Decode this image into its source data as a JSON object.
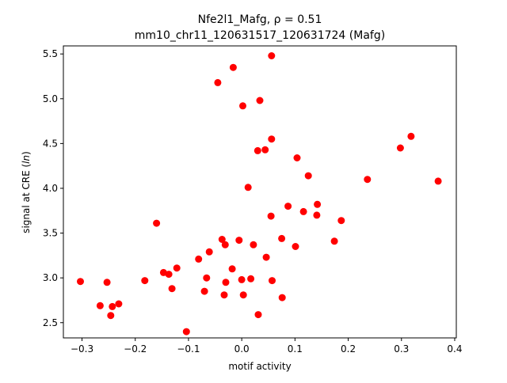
{
  "chart_data": {
    "type": "scatter",
    "title_line1": "Nfe2l1_Mafg, ρ = 0.51",
    "title_line2": "mm10_chr11_120631517_120631724 (Mafg)",
    "xlabel": "motif activity",
    "ylabel_prefix": "signal at CRE (",
    "ylabel_italic": "ln",
    "ylabel_suffix": ")",
    "xlim": [
      -0.335,
      0.403
    ],
    "ylim": [
      2.33,
      5.59
    ],
    "xticks": [
      -0.3,
      -0.2,
      -0.1,
      0.0,
      0.1,
      0.2,
      0.3,
      0.4
    ],
    "xtick_labels": [
      "−0.3",
      "−0.2",
      "−0.1",
      "0.0",
      "0.1",
      "0.2",
      "0.3",
      "0.4"
    ],
    "yticks": [
      2.5,
      3.0,
      3.5,
      4.0,
      4.5,
      5.0,
      5.5
    ],
    "ytick_labels": [
      "2.5",
      "3.0",
      "3.5",
      "4.0",
      "4.5",
      "5.0",
      "5.5"
    ],
    "grid": false,
    "marker_color": "#ff0000",
    "points": [
      {
        "x": -0.303,
        "y": 2.96
      },
      {
        "x": -0.266,
        "y": 2.69
      },
      {
        "x": -0.253,
        "y": 2.95
      },
      {
        "x": -0.246,
        "y": 2.58
      },
      {
        "x": -0.243,
        "y": 2.68
      },
      {
        "x": -0.231,
        "y": 2.71
      },
      {
        "x": -0.182,
        "y": 2.97
      },
      {
        "x": -0.16,
        "y": 3.61
      },
      {
        "x": -0.147,
        "y": 3.06
      },
      {
        "x": -0.137,
        "y": 3.04
      },
      {
        "x": -0.131,
        "y": 2.88
      },
      {
        "x": -0.122,
        "y": 3.11
      },
      {
        "x": -0.104,
        "y": 2.4
      },
      {
        "x": -0.081,
        "y": 3.21
      },
      {
        "x": -0.07,
        "y": 2.85
      },
      {
        "x": -0.066,
        "y": 3.0
      },
      {
        "x": -0.061,
        "y": 3.29
      },
      {
        "x": -0.045,
        "y": 5.18
      },
      {
        "x": -0.037,
        "y": 3.43
      },
      {
        "x": -0.033,
        "y": 2.81
      },
      {
        "x": -0.031,
        "y": 3.37
      },
      {
        "x": -0.03,
        "y": 2.95
      },
      {
        "x": -0.018,
        "y": 3.1
      },
      {
        "x": -0.016,
        "y": 5.35
      },
      {
        "x": -0.005,
        "y": 3.42
      },
      {
        "x": 0.0,
        "y": 2.98
      },
      {
        "x": 0.002,
        "y": 4.92
      },
      {
        "x": 0.003,
        "y": 2.81
      },
      {
        "x": 0.012,
        "y": 4.01
      },
      {
        "x": 0.017,
        "y": 2.99
      },
      {
        "x": 0.022,
        "y": 3.37
      },
      {
        "x": 0.03,
        "y": 4.42
      },
      {
        "x": 0.031,
        "y": 2.59
      },
      {
        "x": 0.034,
        "y": 4.98
      },
      {
        "x": 0.044,
        "y": 4.43
      },
      {
        "x": 0.046,
        "y": 3.23
      },
      {
        "x": 0.055,
        "y": 3.69
      },
      {
        "x": 0.056,
        "y": 5.48
      },
      {
        "x": 0.056,
        "y": 4.55
      },
      {
        "x": 0.057,
        "y": 2.97
      },
      {
        "x": 0.075,
        "y": 3.44
      },
      {
        "x": 0.076,
        "y": 2.78
      },
      {
        "x": 0.087,
        "y": 3.8
      },
      {
        "x": 0.101,
        "y": 3.35
      },
      {
        "x": 0.104,
        "y": 4.34
      },
      {
        "x": 0.116,
        "y": 3.74
      },
      {
        "x": 0.125,
        "y": 4.14
      },
      {
        "x": 0.141,
        "y": 3.7
      },
      {
        "x": 0.142,
        "y": 3.82
      },
      {
        "x": 0.174,
        "y": 3.41
      },
      {
        "x": 0.187,
        "y": 3.64
      },
      {
        "x": 0.236,
        "y": 4.1
      },
      {
        "x": 0.298,
        "y": 4.45
      },
      {
        "x": 0.318,
        "y": 4.58
      },
      {
        "x": 0.369,
        "y": 4.08
      }
    ]
  }
}
